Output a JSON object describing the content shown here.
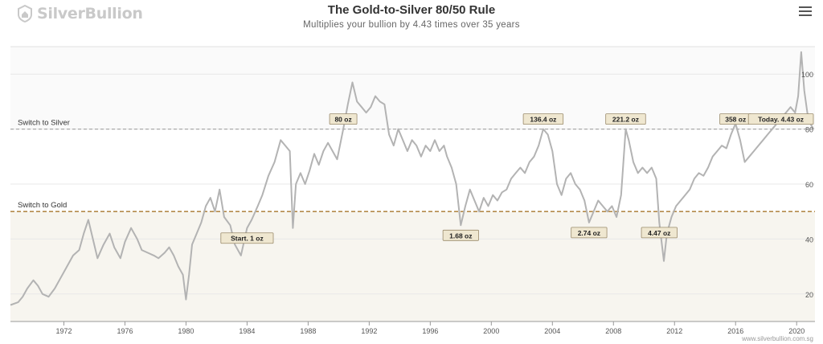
{
  "brand": {
    "name": "SilverBullion",
    "logo_icon": "house-shield-icon"
  },
  "header": {
    "title": "The Gold-to-Silver 80/50 Rule",
    "subtitle": "Multiplies your bullion by 4.43 times over 35 years",
    "menu_icon": "hamburger-menu-icon"
  },
  "credit": "www.silverbullion.com.sg",
  "colors": {
    "line": "#b3b3b3",
    "lower_band": "#f7f5ef",
    "upper_band": "#fafafa",
    "gold_line": "#b38a4a",
    "silver_line": "#aaaaaa",
    "label_fill": "#efe7d0",
    "label_border": "#9a8a6a"
  },
  "chart_data": {
    "type": "line",
    "title": "The Gold-to-Silver 80/50 Rule",
    "subtitle": "Multiplies your bullion by 4.43 times over 35 years",
    "xlim": [
      1968.5,
      2021.2
    ],
    "ylim": [
      10,
      110
    ],
    "x_ticks": [
      1972,
      1976,
      1980,
      1984,
      1988,
      1992,
      1996,
      2000,
      2004,
      2008,
      2012,
      2016,
      2020
    ],
    "y_ticks": [
      20,
      40,
      60,
      80,
      100
    ],
    "grid": true,
    "series": [
      {
        "points": [
          [
            1968.5,
            16
          ],
          [
            1969.0,
            17
          ],
          [
            1969.3,
            19
          ],
          [
            1969.6,
            22
          ],
          [
            1970.0,
            25
          ],
          [
            1970.3,
            23
          ],
          [
            1970.6,
            20
          ],
          [
            1971.0,
            19
          ],
          [
            1971.4,
            22
          ],
          [
            1971.8,
            26
          ],
          [
            1972.2,
            30
          ],
          [
            1972.6,
            34
          ],
          [
            1973.0,
            36
          ],
          [
            1973.3,
            42
          ],
          [
            1973.6,
            47
          ],
          [
            1973.9,
            40
          ],
          [
            1974.2,
            33
          ],
          [
            1974.6,
            38
          ],
          [
            1975.0,
            42
          ],
          [
            1975.3,
            37
          ],
          [
            1975.7,
            33
          ],
          [
            1976.0,
            39
          ],
          [
            1976.4,
            44
          ],
          [
            1976.8,
            40
          ],
          [
            1977.1,
            36
          ],
          [
            1977.5,
            35
          ],
          [
            1977.9,
            34
          ],
          [
            1978.2,
            33
          ],
          [
            1978.6,
            35
          ],
          [
            1978.9,
            37
          ],
          [
            1979.2,
            34
          ],
          [
            1979.5,
            30
          ],
          [
            1979.8,
            27
          ],
          [
            1980.0,
            18
          ],
          [
            1980.2,
            27
          ],
          [
            1980.4,
            38
          ],
          [
            1980.7,
            42
          ],
          [
            1981.0,
            46
          ],
          [
            1981.3,
            52
          ],
          [
            1981.6,
            55
          ],
          [
            1981.9,
            50
          ],
          [
            1982.2,
            58
          ],
          [
            1982.5,
            48
          ],
          [
            1982.9,
            45
          ],
          [
            1983.2,
            38
          ],
          [
            1983.6,
            34
          ],
          [
            1984.0,
            44
          ],
          [
            1984.3,
            47
          ],
          [
            1984.7,
            52
          ],
          [
            1985.0,
            56
          ],
          [
            1985.4,
            63
          ],
          [
            1985.8,
            68
          ],
          [
            1986.2,
            76
          ],
          [
            1986.5,
            74
          ],
          [
            1986.8,
            72
          ],
          [
            1987.0,
            44
          ],
          [
            1987.2,
            60
          ],
          [
            1987.5,
            64
          ],
          [
            1987.8,
            60
          ],
          [
            1988.1,
            65
          ],
          [
            1988.4,
            71
          ],
          [
            1988.7,
            67
          ],
          [
            1989.0,
            72
          ],
          [
            1989.3,
            75
          ],
          [
            1989.6,
            72
          ],
          [
            1989.9,
            69
          ],
          [
            1990.3,
            80
          ],
          [
            1990.6,
            89
          ],
          [
            1990.9,
            97
          ],
          [
            1991.2,
            90
          ],
          [
            1991.5,
            88
          ],
          [
            1991.8,
            86
          ],
          [
            1992.1,
            88
          ],
          [
            1992.4,
            92
          ],
          [
            1992.7,
            90
          ],
          [
            1993.0,
            89
          ],
          [
            1993.3,
            78
          ],
          [
            1993.6,
            74
          ],
          [
            1993.9,
            80
          ],
          [
            1994.2,
            76
          ],
          [
            1994.5,
            72
          ],
          [
            1994.8,
            76
          ],
          [
            1995.1,
            74
          ],
          [
            1995.4,
            70
          ],
          [
            1995.7,
            74
          ],
          [
            1996.0,
            72
          ],
          [
            1996.3,
            76
          ],
          [
            1996.6,
            72
          ],
          [
            1996.9,
            74
          ],
          [
            1997.1,
            70
          ],
          [
            1997.4,
            66
          ],
          [
            1997.7,
            60
          ],
          [
            1998.0,
            45
          ],
          [
            1998.3,
            52
          ],
          [
            1998.6,
            58
          ],
          [
            1998.9,
            54
          ],
          [
            1999.2,
            50
          ],
          [
            1999.5,
            55
          ],
          [
            1999.8,
            52
          ],
          [
            2000.1,
            56
          ],
          [
            2000.4,
            54
          ],
          [
            2000.7,
            57
          ],
          [
            2001.0,
            58
          ],
          [
            2001.3,
            62
          ],
          [
            2001.6,
            64
          ],
          [
            2001.9,
            66
          ],
          [
            2002.2,
            64
          ],
          [
            2002.5,
            68
          ],
          [
            2002.8,
            70
          ],
          [
            2003.1,
            74
          ],
          [
            2003.4,
            80
          ],
          [
            2003.7,
            78
          ],
          [
            2004.0,
            72
          ],
          [
            2004.3,
            60
          ],
          [
            2004.6,
            56
          ],
          [
            2004.9,
            62
          ],
          [
            2005.2,
            64
          ],
          [
            2005.5,
            60
          ],
          [
            2005.8,
            58
          ],
          [
            2006.1,
            54
          ],
          [
            2006.4,
            46
          ],
          [
            2006.7,
            50
          ],
          [
            2007.0,
            54
          ],
          [
            2007.3,
            52
          ],
          [
            2007.6,
            50
          ],
          [
            2007.9,
            52
          ],
          [
            2008.2,
            48
          ],
          [
            2008.5,
            56
          ],
          [
            2008.8,
            80
          ],
          [
            2009.0,
            76
          ],
          [
            2009.3,
            68
          ],
          [
            2009.6,
            64
          ],
          [
            2009.9,
            66
          ],
          [
            2010.2,
            64
          ],
          [
            2010.5,
            66
          ],
          [
            2010.8,
            62
          ],
          [
            2011.0,
            46
          ],
          [
            2011.3,
            32
          ],
          [
            2011.5,
            42
          ],
          [
            2011.8,
            48
          ],
          [
            2012.1,
            52
          ],
          [
            2012.4,
            54
          ],
          [
            2012.7,
            56
          ],
          [
            2013.0,
            58
          ],
          [
            2013.3,
            62
          ],
          [
            2013.6,
            64
          ],
          [
            2013.9,
            63
          ],
          [
            2014.2,
            66
          ],
          [
            2014.5,
            70
          ],
          [
            2014.8,
            72
          ],
          [
            2015.1,
            74
          ],
          [
            2015.4,
            73
          ],
          [
            2015.7,
            78
          ],
          [
            2016.0,
            82
          ],
          [
            2016.3,
            76
          ],
          [
            2016.6,
            68
          ],
          [
            2016.9,
            70
          ],
          [
            2017.2,
            72
          ],
          [
            2017.5,
            74
          ],
          [
            2017.8,
            76
          ],
          [
            2018.1,
            78
          ],
          [
            2018.4,
            80
          ],
          [
            2018.7,
            82
          ],
          [
            2019.0,
            84
          ],
          [
            2019.3,
            86
          ],
          [
            2019.6,
            88
          ],
          [
            2019.9,
            86
          ],
          [
            2020.1,
            92
          ],
          [
            2020.3,
            108
          ],
          [
            2020.5,
            94
          ],
          [
            2020.7,
            86
          ],
          [
            2020.9,
            82
          ],
          [
            2021.1,
            80
          ]
        ]
      }
    ],
    "reference_lines": [
      {
        "label": "Switch to Silver",
        "y": 80
      },
      {
        "label": "Switch to Gold",
        "y": 50
      }
    ],
    "annotations": [
      {
        "label": "Start. 1 oz",
        "x": 1984.0,
        "y": 44
      },
      {
        "label": "80 oz",
        "x": 1990.3,
        "y": 80
      },
      {
        "label": "1.68 oz",
        "x": 1998.0,
        "y": 45
      },
      {
        "label": "136.4 oz",
        "x": 2003.4,
        "y": 80
      },
      {
        "label": "2.74 oz",
        "x": 2006.4,
        "y": 46
      },
      {
        "label": "221.2 oz",
        "x": 2008.8,
        "y": 80
      },
      {
        "label": "4.47 oz",
        "x": 2011.0,
        "y": 46
      },
      {
        "label": "358 oz",
        "x": 2016.0,
        "y": 80
      },
      {
        "label": "Today. 4.43 oz",
        "x": 2021.1,
        "y": 80
      }
    ]
  }
}
